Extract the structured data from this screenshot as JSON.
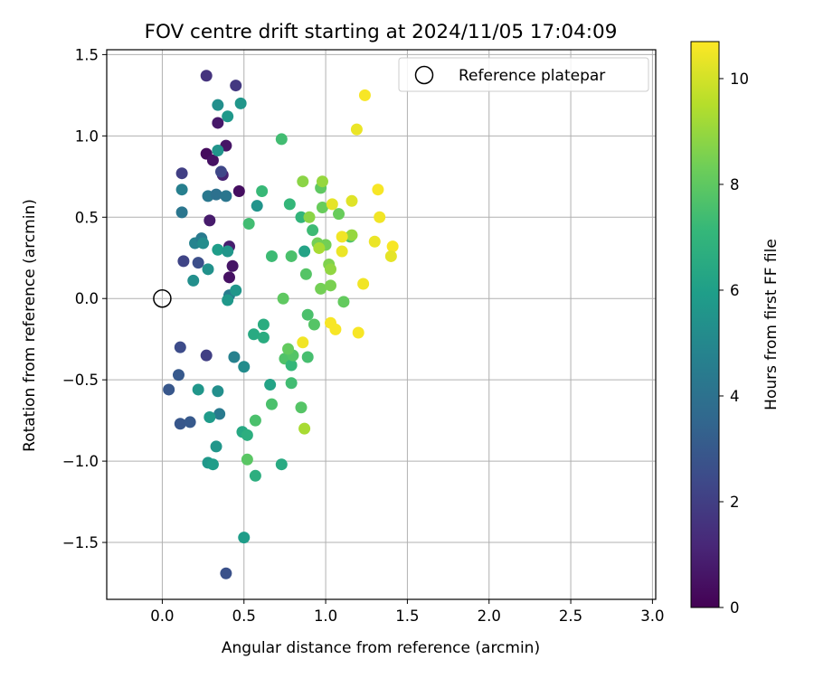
{
  "chart_data": {
    "type": "scatter",
    "title": "FOV centre drift starting at 2024/11/05 17:04:09",
    "xlabel": "Angular distance from reference (arcmin)",
    "ylabel": "Rotation from reference (arcmin)",
    "xlim": [
      -0.34,
      3.02
    ],
    "ylim": [
      -1.85,
      1.53
    ],
    "xticks": [
      0.0,
      0.5,
      1.0,
      1.5,
      2.0,
      2.5,
      3.0
    ],
    "xtick_labels": [
      "0.0",
      "0.5",
      "1.0",
      "1.5",
      "2.0",
      "2.5",
      "3.0"
    ],
    "yticks": [
      -1.5,
      -1.0,
      -0.5,
      0.0,
      0.5,
      1.0,
      1.5
    ],
    "ytick_labels": [
      "−1.5",
      "−1.0",
      "−0.5",
      "0.0",
      "0.5",
      "1.0",
      "1.5"
    ],
    "grid": true,
    "legend": {
      "placement": "top-right",
      "entries": [
        "Reference platepar"
      ]
    },
    "reference_point": {
      "x": 0.0,
      "y": 0.0
    },
    "colorbar": {
      "label": "Hours from first FF file",
      "colormap": "viridis",
      "range": [
        0,
        10.7
      ],
      "ticks": [
        0,
        2,
        4,
        6,
        8,
        10
      ],
      "tick_labels": [
        "0",
        "2",
        "4",
        "6",
        "8",
        "10"
      ]
    },
    "points": [
      {
        "x": 0.27,
        "y": 0.89,
        "h": 0.3
      },
      {
        "x": 0.31,
        "y": 0.85,
        "h": 0.5
      },
      {
        "x": 0.34,
        "y": 1.08,
        "h": 0.7
      },
      {
        "x": 0.39,
        "y": 0.94,
        "h": 0.6
      },
      {
        "x": 0.37,
        "y": 0.76,
        "h": 1.0
      },
      {
        "x": 0.47,
        "y": 0.66,
        "h": 0.4
      },
      {
        "x": 0.29,
        "y": 0.48,
        "h": 0.8
      },
      {
        "x": 0.41,
        "y": 0.32,
        "h": 0.9
      },
      {
        "x": 0.43,
        "y": 0.2,
        "h": 0.6
      },
      {
        "x": 0.41,
        "y": 0.13,
        "h": 0.5
      },
      {
        "x": 0.27,
        "y": 1.37,
        "h": 1.6
      },
      {
        "x": 0.45,
        "y": 1.31,
        "h": 1.8
      },
      {
        "x": 0.12,
        "y": 0.77,
        "h": 2.0
      },
      {
        "x": 0.36,
        "y": 0.78,
        "h": 2.3
      },
      {
        "x": 0.13,
        "y": 0.23,
        "h": 2.2
      },
      {
        "x": 0.22,
        "y": 0.22,
        "h": 2.6
      },
      {
        "x": 0.11,
        "y": -0.3,
        "h": 2.5
      },
      {
        "x": 0.27,
        "y": -0.35,
        "h": 2.0
      },
      {
        "x": 0.1,
        "y": -0.47,
        "h": 3.0
      },
      {
        "x": 0.04,
        "y": -0.56,
        "h": 2.9
      },
      {
        "x": 0.11,
        "y": -0.77,
        "h": 2.9
      },
      {
        "x": 0.17,
        "y": -0.76,
        "h": 3.0
      },
      {
        "x": 0.39,
        "y": -1.69,
        "h": 2.7
      },
      {
        "x": 0.12,
        "y": 0.67,
        "h": 4.6
      },
      {
        "x": 0.12,
        "y": 0.53,
        "h": 4.2
      },
      {
        "x": 0.28,
        "y": 0.63,
        "h": 4.3
      },
      {
        "x": 0.33,
        "y": 0.64,
        "h": 4.0
      },
      {
        "x": 0.39,
        "y": 0.63,
        "h": 4.2
      },
      {
        "x": 0.2,
        "y": 0.34,
        "h": 4.8
      },
      {
        "x": 0.24,
        "y": 0.37,
        "h": 4.4
      },
      {
        "x": 0.41,
        "y": 0.02,
        "h": 4.5
      },
      {
        "x": 0.44,
        "y": -0.36,
        "h": 4.7
      },
      {
        "x": 0.35,
        "y": -0.71,
        "h": 4.4
      },
      {
        "x": 0.19,
        "y": 0.11,
        "h": 5.3
      },
      {
        "x": 0.34,
        "y": 1.19,
        "h": 5.3
      },
      {
        "x": 0.48,
        "y": 1.2,
        "h": 5.6
      },
      {
        "x": 0.4,
        "y": 1.12,
        "h": 5.7
      },
      {
        "x": 0.34,
        "y": 0.91,
        "h": 5.5
      },
      {
        "x": 0.25,
        "y": 0.34,
        "h": 5.2
      },
      {
        "x": 0.34,
        "y": 0.3,
        "h": 5.9
      },
      {
        "x": 0.4,
        "y": 0.29,
        "h": 5.6
      },
      {
        "x": 0.28,
        "y": 0.18,
        "h": 5.4
      },
      {
        "x": 0.4,
        "y": -0.01,
        "h": 5.7
      },
      {
        "x": 0.45,
        "y": 0.05,
        "h": 5.6
      },
      {
        "x": 0.58,
        "y": 0.57,
        "h": 5.5
      },
      {
        "x": 0.5,
        "y": -0.42,
        "h": 5.2
      },
      {
        "x": 0.22,
        "y": -0.56,
        "h": 5.6
      },
      {
        "x": 0.34,
        "y": -0.57,
        "h": 5.3
      },
      {
        "x": 0.29,
        "y": -0.73,
        "h": 5.8
      },
      {
        "x": 0.33,
        "y": -0.91,
        "h": 5.6
      },
      {
        "x": 0.28,
        "y": -1.01,
        "h": 5.7
      },
      {
        "x": 0.31,
        "y": -1.02,
        "h": 5.9
      },
      {
        "x": 0.5,
        "y": -1.47,
        "h": 5.9
      },
      {
        "x": 0.49,
        "y": -0.82,
        "h": 6.4
      },
      {
        "x": 0.52,
        "y": -0.84,
        "h": 6.7
      },
      {
        "x": 0.56,
        "y": -0.22,
        "h": 6.5
      },
      {
        "x": 0.62,
        "y": -0.16,
        "h": 6.6
      },
      {
        "x": 0.62,
        "y": -0.24,
        "h": 6.6
      },
      {
        "x": 0.66,
        "y": -0.53,
        "h": 6.2
      },
      {
        "x": 0.57,
        "y": -1.09,
        "h": 6.7
      },
      {
        "x": 0.73,
        "y": -1.02,
        "h": 6.5
      },
      {
        "x": 0.87,
        "y": 0.29,
        "h": 6.2
      },
      {
        "x": 0.53,
        "y": 0.46,
        "h": 7.4
      },
      {
        "x": 0.61,
        "y": 0.66,
        "h": 7.2
      },
      {
        "x": 0.73,
        "y": 0.98,
        "h": 7.4
      },
      {
        "x": 0.78,
        "y": 0.58,
        "h": 7.1
      },
      {
        "x": 0.85,
        "y": 0.5,
        "h": 7.0
      },
      {
        "x": 0.67,
        "y": 0.26,
        "h": 7.3
      },
      {
        "x": 0.79,
        "y": 0.26,
        "h": 7.6
      },
      {
        "x": 0.57,
        "y": -0.75,
        "h": 7.6
      },
      {
        "x": 0.67,
        "y": -0.65,
        "h": 7.6
      },
      {
        "x": 0.52,
        "y": -0.99,
        "h": 7.9
      },
      {
        "x": 0.75,
        "y": -0.37,
        "h": 7.7
      },
      {
        "x": 0.79,
        "y": -0.41,
        "h": 7.1
      },
      {
        "x": 0.8,
        "y": -0.35,
        "h": 7.8
      },
      {
        "x": 0.79,
        "y": -0.52,
        "h": 7.4
      },
      {
        "x": 0.85,
        "y": -0.67,
        "h": 7.8
      },
      {
        "x": 0.89,
        "y": -0.36,
        "h": 7.5
      },
      {
        "x": 0.89,
        "y": -0.1,
        "h": 7.6
      },
      {
        "x": 0.88,
        "y": 0.15,
        "h": 7.8
      },
      {
        "x": 0.74,
        "y": 0.0,
        "h": 8.0
      },
      {
        "x": 0.77,
        "y": -0.31,
        "h": 8.1
      },
      {
        "x": 0.93,
        "y": -0.16,
        "h": 7.8
      },
      {
        "x": 0.92,
        "y": 0.42,
        "h": 7.3
      },
      {
        "x": 0.95,
        "y": 0.34,
        "h": 8.4
      },
      {
        "x": 0.97,
        "y": 0.06,
        "h": 8.4
      },
      {
        "x": 0.86,
        "y": 0.72,
        "h": 8.8
      },
      {
        "x": 0.9,
        "y": 0.5,
        "h": 8.8
      },
      {
        "x": 0.97,
        "y": 0.68,
        "h": 8.0
      },
      {
        "x": 0.98,
        "y": 0.72,
        "h": 9.0
      },
      {
        "x": 0.98,
        "y": 0.56,
        "h": 8.2
      },
      {
        "x": 1.0,
        "y": 0.33,
        "h": 8.4
      },
      {
        "x": 1.02,
        "y": 0.21,
        "h": 8.6
      },
      {
        "x": 1.03,
        "y": 0.18,
        "h": 8.9
      },
      {
        "x": 1.03,
        "y": 0.08,
        "h": 8.5
      },
      {
        "x": 1.08,
        "y": 0.52,
        "h": 8.2
      },
      {
        "x": 1.11,
        "y": -0.02,
        "h": 8.1
      },
      {
        "x": 1.15,
        "y": 0.38,
        "h": 7.6
      },
      {
        "x": 1.16,
        "y": 0.39,
        "h": 9.0
      },
      {
        "x": 0.87,
        "y": -0.8,
        "h": 9.3
      },
      {
        "x": 0.96,
        "y": 0.31,
        "h": 9.3
      },
      {
        "x": 1.16,
        "y": 0.6,
        "h": 10.2
      },
      {
        "x": 1.04,
        "y": 0.58,
        "h": 10.3
      },
      {
        "x": 1.1,
        "y": 0.38,
        "h": 10.5
      },
      {
        "x": 1.1,
        "y": 0.29,
        "h": 10.4
      },
      {
        "x": 1.3,
        "y": 0.35,
        "h": 10.4
      },
      {
        "x": 1.32,
        "y": 0.67,
        "h": 10.6
      },
      {
        "x": 1.33,
        "y": 0.5,
        "h": 10.5
      },
      {
        "x": 1.41,
        "y": 0.32,
        "h": 10.6
      },
      {
        "x": 1.4,
        "y": 0.26,
        "h": 10.3
      },
      {
        "x": 1.24,
        "y": 1.25,
        "h": 10.6
      },
      {
        "x": 1.19,
        "y": 1.04,
        "h": 10.4
      },
      {
        "x": 1.23,
        "y": 0.09,
        "h": 10.5
      },
      {
        "x": 1.03,
        "y": -0.15,
        "h": 10.6
      },
      {
        "x": 1.06,
        "y": -0.19,
        "h": 10.6
      },
      {
        "x": 1.2,
        "y": -0.21,
        "h": 10.6
      },
      {
        "x": 0.86,
        "y": -0.27,
        "h": 10.5
      }
    ]
  }
}
